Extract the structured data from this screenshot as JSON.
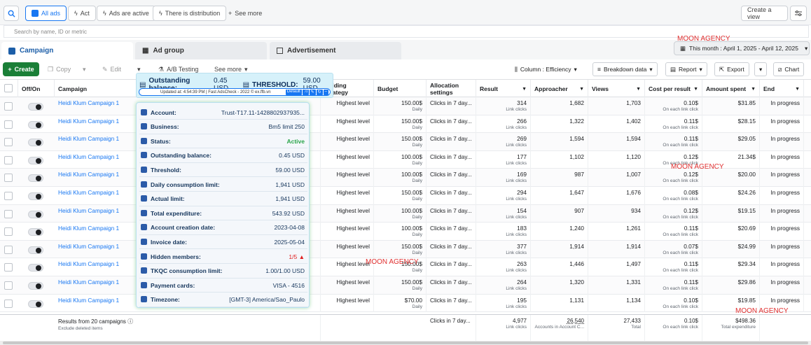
{
  "topbar": {
    "chips": [
      {
        "label": "All ads"
      },
      {
        "label": "Act"
      },
      {
        "label": "Ads are active"
      },
      {
        "label": "There is distribution"
      }
    ],
    "see_more": "See more",
    "create_view": "Create a view"
  },
  "search": {
    "placeholder": "Search by name, ID or metric"
  },
  "tabs": [
    {
      "label": "Campaign"
    },
    {
      "label": "Ad group"
    },
    {
      "label": "Advertisement"
    }
  ],
  "date_range": "This month : April 1, 2025 - April 12, 2025",
  "toolbar": {
    "create": "Create",
    "copy": "Copy",
    "edit": "Edit",
    "ab": "A/B Testing",
    "see_more": "See more",
    "column": "Column : Efficiency",
    "breakdown": "Breakdown data",
    "report": "Report",
    "export": "Export",
    "chart": "Chart"
  },
  "headers": {
    "onoff": "Off/On",
    "campaign": "Campaign",
    "bidding": "Bidding Strategy",
    "budget": "Budget",
    "allocation": "Allocation settings",
    "result": "Result",
    "approacher": "Approacher",
    "views": "Views",
    "cost": "Cost per result",
    "amount": "Amount spent",
    "end": "End"
  },
  "rows": [
    {
      "name": "Heidi Klum Campaign 1",
      "bid": "Highest level",
      "budget": "150.00$",
      "alloc": "Clicks in 7 day...",
      "result": "314",
      "reach": "1,682",
      "views": "1,703",
      "cpr": "0.10$",
      "spent": "$31.85",
      "end": "In progress"
    },
    {
      "name": "Heidi Klum Campaign 1",
      "bid": "Highest level",
      "budget": "150.00$",
      "alloc": "Clicks in 7 day...",
      "result": "266",
      "reach": "1,322",
      "views": "1,402",
      "cpr": "0.11$",
      "spent": "$28.15",
      "end": "In progress"
    },
    {
      "name": "Heidi Klum Campaign 1",
      "bid": "Highest level",
      "budget": "150.00$",
      "alloc": "Clicks in 7 day...",
      "result": "269",
      "reach": "1,594",
      "views": "1,594",
      "cpr": "0.11$",
      "spent": "$29.05",
      "end": "In progress"
    },
    {
      "name": "Heidi Klum Campaign 1",
      "bid": "Highest level",
      "budget": "100.00$",
      "alloc": "Clicks in 7 day...",
      "result": "177",
      "reach": "1,102",
      "views": "1,120",
      "cpr": "0.12$",
      "spent": "21.34$",
      "end": "In progress"
    },
    {
      "name": "Heidi Klum Campaign 1",
      "bid": "Highest level",
      "budget": "100.00$",
      "alloc": "Clicks in 7 day...",
      "result": "169",
      "reach": "987",
      "views": "1,007",
      "cpr": "0.12$",
      "spent": "$20.00",
      "end": "In progress"
    },
    {
      "name": "Heidi Klum Campaign 1",
      "bid": "Highest level",
      "budget": "150.00$",
      "alloc": "Clicks in 7 day...",
      "result": "294",
      "reach": "1,647",
      "views": "1,676",
      "cpr": "0.08$",
      "spent": "$24.26",
      "end": "In progress"
    },
    {
      "name": "Heidi Klum Campaign 1",
      "bid": "Highest level",
      "budget": "100.00$",
      "alloc": "Clicks in 7 day...",
      "result": "154",
      "reach": "907",
      "views": "934",
      "cpr": "0.12$",
      "spent": "$19.15",
      "end": "In progress"
    },
    {
      "name": "Heidi Klum Campaign 1",
      "bid": "Highest level",
      "budget": "100.00$",
      "alloc": "Clicks in 7 day...",
      "result": "183",
      "reach": "1,240",
      "views": "1,261",
      "cpr": "0.11$",
      "spent": "$20.69",
      "end": "In progress"
    },
    {
      "name": "Heidi Klum Campaign 1",
      "bid": "Highest level",
      "budget": "150.00$",
      "alloc": "Clicks in 7 day...",
      "result": "377",
      "reach": "1,914",
      "views": "1,914",
      "cpr": "0.07$",
      "spent": "$24.99",
      "end": "In progress"
    },
    {
      "name": "Heidi Klum Campaign 1",
      "bid": "Highest level",
      "budget": "150.00$",
      "alloc": "Clicks in 7 day...",
      "result": "263",
      "reach": "1,446",
      "views": "1,497",
      "cpr": "0.11$",
      "spent": "$29.34",
      "end": "In progress"
    },
    {
      "name": "Heidi Klum Campaign 1",
      "bid": "Highest level",
      "budget": "150.00$",
      "alloc": "Clicks in 7 day...",
      "result": "264",
      "reach": "1,320",
      "views": "1,331",
      "cpr": "0.11$",
      "spent": "$29.86",
      "end": "In progress"
    },
    {
      "name": "Heidi Klum Campaign 1",
      "bid": "Highest level",
      "budget": "$70.00",
      "alloc": "Clicks in 7 day...",
      "result": "195",
      "reach": "1,131",
      "views": "1,134",
      "cpr": "0.10$",
      "spent": "$19.85",
      "end": "In progress"
    }
  ],
  "sub": {
    "daily": "Daily",
    "link_clicks": "Link clicks",
    "each_link": "On each link click"
  },
  "footer": {
    "results": "Results from 20 campaigns",
    "exclude": "Exclude deleted items",
    "alloc": "Clicks in 7 day...",
    "result": "4,977",
    "result_sub": "Link clicks",
    "reach": "26,540",
    "reach_sub": "Accounts in Account C...",
    "views": "27,433",
    "views_sub": "Total",
    "cpr": "0.10$",
    "cpr_sub": "On each link click",
    "spent": "$498.36",
    "spent_sub": "Total expenditure"
  },
  "popup": {
    "outstanding_label": "Outstanding balance:",
    "outstanding_value": "0.45 USD",
    "threshold_label": "THRESHOLD:",
    "threshold_value": "59.00 USD",
    "bar_text": "Updated at: 4:54:39 PM | Fast AdsCheck - 2022 © ex.ffb.vn",
    "bar_default": "Default"
  },
  "card": [
    {
      "k": "Account:",
      "v": "Trust-T17.11-1428802937935..."
    },
    {
      "k": "Business:",
      "v": "Bm5 limit 250"
    },
    {
      "k": "Status:",
      "v": "Active"
    },
    {
      "k": "Outstanding balance:",
      "v": "0.45 USD"
    },
    {
      "k": "Threshold:",
      "v": "59.00 USD"
    },
    {
      "k": "Daily consumption limit:",
      "v": "1,941 USD"
    },
    {
      "k": "Actual limit:",
      "v": "1,941 USD"
    },
    {
      "k": "Total expenditure:",
      "v": "543.92 USD"
    },
    {
      "k": "Account creation date:",
      "v": "2023-04-08"
    },
    {
      "k": "Invoice date:",
      "v": "2025-05-04"
    },
    {
      "k": "Hidden members:",
      "v": "1/5"
    },
    {
      "k": "TKQC consumption limit:",
      "v": "1.00/1.00 USD"
    },
    {
      "k": "Payment cards:",
      "v": "VISA - 4516"
    },
    {
      "k": "Timezone:",
      "v": "[GMT-3] America/Sao_Paulo"
    }
  ],
  "watermark": "MOON AGENCY",
  "colors": {
    "active": "#2aa54a",
    "brand": "#1877f2",
    "create": "#1a7f37",
    "warn": "#e02020"
  }
}
